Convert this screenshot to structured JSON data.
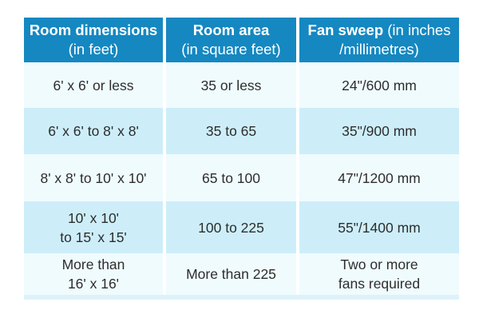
{
  "chart_data": {
    "type": "table",
    "columns": [
      "Room dimensions (in feet)",
      "Room area (in square feet)",
      "Fan sweep (in inches /millimetres)"
    ],
    "rows": [
      [
        "6' x 6' or less",
        "35 or less",
        "24\"/600 mm"
      ],
      [
        "6' x 6' to 8' x 8'",
        "35 to 65",
        "35\"/900 mm"
      ],
      [
        "8' x 8' to 10' x 10'",
        "65 to 100",
        "47\"/1200 mm"
      ],
      [
        "10' x 10' to 15' x 15'",
        "100 to 225",
        "55\"/1400 mm"
      ],
      [
        "More than 16' x 16'",
        "More than 225",
        "Two or more fans required"
      ]
    ],
    "layout_hints": {
      "header_style": "solid blue band, white text",
      "row_striping": "pale / light-blue alternating",
      "grid": "white vertical gutters between columns only"
    }
  },
  "table": {
    "headers": [
      {
        "title": "Room dimensions",
        "rest": "\n(in feet)"
      },
      {
        "title": "Room area",
        "rest": "\n(in square feet)"
      },
      {
        "title": "Fan sweep",
        "rest": " (in inches\n/millimetres)"
      }
    ],
    "rows": [
      [
        "6' x 6' or less",
        "35 or less",
        "24\"/600 mm"
      ],
      [
        "6' x 6' to 8' x 8'",
        "35 to 65",
        "35\"/900 mm"
      ],
      [
        "8' x 8' to 10' x 10'",
        "65 to 100",
        "47\"/1200 mm"
      ],
      [
        "10' x 10'\nto 15' x 15'",
        "100 to 225",
        "55\"/1400 mm"
      ],
      [
        "More than\n16' x 16'",
        "More than 225",
        "Two or more\nfans required"
      ]
    ]
  },
  "colors": {
    "header_bg": "#1588c1",
    "header_text": "#ffffff",
    "row_pale": "#f0fbfe",
    "row_light": "#cdeef9",
    "bottom_edge": "#def2fa",
    "body_text": "#2d2d2d"
  }
}
